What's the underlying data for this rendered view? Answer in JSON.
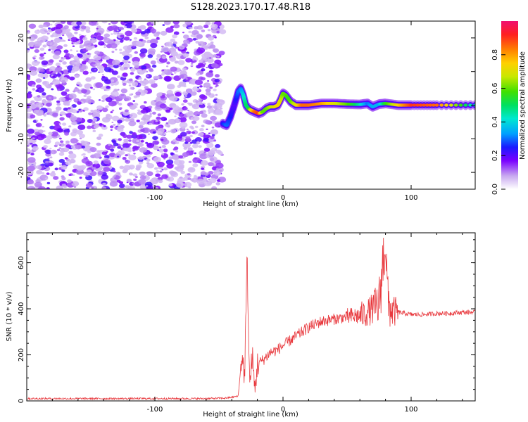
{
  "title": "S128.2023.170.17.48.R18",
  "chart_data": [
    {
      "type": "heatmap",
      "name": "spectrogram",
      "xlabel": "Height of straight line (km)",
      "ylabel": "Frequency (Hz)",
      "xlim": [
        -200,
        150
      ],
      "ylim": [
        -25,
        25
      ],
      "xticks": [
        -100,
        0,
        100
      ],
      "yticks": [
        -20,
        -10,
        0,
        10,
        20
      ],
      "colorbar": {
        "label": "Normalized spectral amplitude",
        "range": [
          0.0,
          1.0
        ],
        "ticks": [
          0.0,
          0.2,
          0.4,
          0.6,
          0.8
        ]
      },
      "noise_region": {
        "x": [
          -200,
          -47
        ],
        "y": [
          -25,
          25
        ]
      },
      "ridge": {
        "x": [
          -47,
          -44,
          -41,
          -38,
          -35,
          -33,
          -31,
          -29,
          -27,
          -25,
          -22,
          -19,
          -16,
          -13,
          -10,
          -7,
          -4,
          -2,
          0,
          2,
          4,
          6,
          10,
          15,
          20,
          30,
          40,
          50,
          60,
          66,
          70,
          75,
          80,
          90,
          100,
          120,
          150
        ],
        "y": [
          -5.5,
          -6,
          -3.5,
          0,
          4,
          5,
          3,
          0,
          -1,
          -1.5,
          -2,
          -2.5,
          -2,
          -1,
          -0.5,
          -0.5,
          0,
          1.5,
          3.5,
          3,
          2,
          1,
          0,
          0,
          0,
          0.5,
          0.5,
          0.3,
          0.2,
          0.5,
          -0.5,
          0.3,
          0.5,
          0,
          0,
          0,
          0
        ],
        "amplitude": [
          0.25,
          0.3,
          0.25,
          0.2,
          0.3,
          0.3,
          0.4,
          0.5,
          0.5,
          0.7,
          0.85,
          0.9,
          0.6,
          0.6,
          0.65,
          0.7,
          0.75,
          0.7,
          0.6,
          0.6,
          0.55,
          0.6,
          0.7,
          0.85,
          0.85,
          0.8,
          0.7,
          0.6,
          0.45,
          0.3,
          0.35,
          0.35,
          0.55,
          0.75,
          0.9,
          0.85,
          0.4
        ]
      }
    },
    {
      "type": "line",
      "name": "snr",
      "xlabel": "Height of straight line (km)",
      "ylabel": "SNR (10 * v/v)",
      "xlim": [
        -200,
        150
      ],
      "ylim": [
        0,
        730
      ],
      "xticks": [
        -100,
        0,
        100
      ],
      "yticks": [
        0,
        200,
        400,
        600
      ],
      "color": "#e8383d",
      "x": [
        -200,
        -180,
        -160,
        -140,
        -120,
        -100,
        -80,
        -60,
        -45,
        -35,
        -32,
        -30,
        -28,
        -26,
        -24,
        -22,
        -20,
        -15,
        -10,
        -5,
        0,
        5,
        10,
        20,
        30,
        40,
        50,
        60,
        65,
        70,
        75,
        78,
        80,
        82,
        85,
        90,
        95,
        100,
        110,
        120,
        130,
        140,
        150
      ],
      "y": [
        10,
        10,
        10,
        10,
        10,
        10,
        10,
        10,
        12,
        20,
        200,
        100,
        620,
        60,
        200,
        40,
        160,
        180,
        210,
        220,
        240,
        260,
        280,
        320,
        345,
        355,
        365,
        370,
        380,
        400,
        420,
        600,
        700,
        420,
        390,
        385,
        380,
        375,
        375,
        380,
        380,
        385,
        385
      ]
    }
  ]
}
